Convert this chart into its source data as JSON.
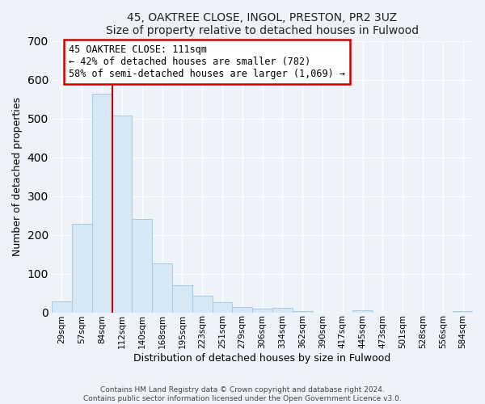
{
  "title": "45, OAKTREE CLOSE, INGOL, PRESTON, PR2 3UZ",
  "subtitle": "Size of property relative to detached houses in Fulwood",
  "xlabel": "Distribution of detached houses by size in Fulwood",
  "ylabel": "Number of detached properties",
  "bar_labels": [
    "29sqm",
    "57sqm",
    "84sqm",
    "112sqm",
    "140sqm",
    "168sqm",
    "195sqm",
    "223sqm",
    "251sqm",
    "279sqm",
    "306sqm",
    "334sqm",
    "362sqm",
    "390sqm",
    "417sqm",
    "445sqm",
    "473sqm",
    "501sqm",
    "528sqm",
    "556sqm",
    "584sqm"
  ],
  "bar_values": [
    28,
    229,
    564,
    508,
    241,
    127,
    70,
    42,
    27,
    14,
    9,
    12,
    4,
    0,
    0,
    6,
    0,
    0,
    0,
    0,
    4
  ],
  "bar_color": "#d6e8f5",
  "bar_edge_color": "#aac8e0",
  "vline_x": 2.5,
  "vline_color": "#cc0000",
  "annotation_title": "45 OAKTREE CLOSE: 111sqm",
  "annotation_line1": "← 42% of detached houses are smaller (782)",
  "annotation_line2": "58% of semi-detached houses are larger (1,069) →",
  "annotation_box_color": "#cc0000",
  "ylim": [
    0,
    700
  ],
  "yticks": [
    0,
    100,
    200,
    300,
    400,
    500,
    600,
    700
  ],
  "footer1": "Contains HM Land Registry data © Crown copyright and database right 2024.",
  "footer2": "Contains public sector information licensed under the Open Government Licence v3.0.",
  "bg_color": "#eef2f9",
  "plot_bg_color": "#eef2f9",
  "grid_color": "#ffffff"
}
